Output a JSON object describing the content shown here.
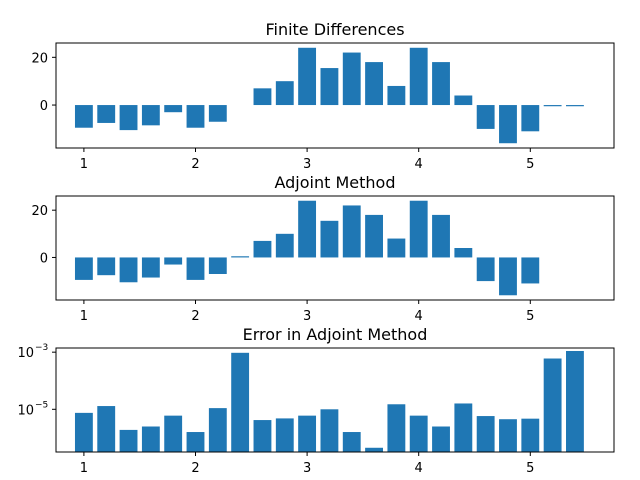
{
  "chart_data": [
    {
      "type": "bar",
      "title": "Finite Differences",
      "xlabel": "",
      "ylabel": "",
      "yscale": "linear",
      "xlim": [
        0.75,
        5.75
      ],
      "ylim": [
        -18,
        26
      ],
      "xticks": [
        1,
        2,
        3,
        4,
        5
      ],
      "xtick_labels": [
        "1",
        "2",
        "3",
        "4",
        "5"
      ],
      "yticks": [
        0,
        20
      ],
      "ytick_labels": [
        "0",
        "20"
      ],
      "bar_width": 0.16,
      "color": "#1f77b4",
      "x": [
        1.0,
        1.2,
        1.4,
        1.6,
        1.8,
        2.0,
        2.2,
        2.4,
        2.6,
        2.8,
        3.0,
        3.2,
        3.4,
        3.6,
        3.8,
        4.0,
        4.2,
        4.4,
        4.6,
        4.8,
        5.0,
        5.2,
        5.4
      ],
      "values": [
        -9.5,
        -7.5,
        -10.5,
        -8.5,
        -3.0,
        -9.5,
        -7.0,
        0,
        7.0,
        10.0,
        24.0,
        15.5,
        22.0,
        18.0,
        8.0,
        24.0,
        18.0,
        4.0,
        -10.0,
        -16.0,
        -11.0,
        -0.5,
        -0.5
      ]
    },
    {
      "type": "bar",
      "title": "Adjoint Method",
      "xlabel": "",
      "ylabel": "",
      "yscale": "linear",
      "xlim": [
        0.75,
        5.75
      ],
      "ylim": [
        -18,
        26
      ],
      "xticks": [
        1,
        2,
        3,
        4,
        5
      ],
      "xtick_labels": [
        "1",
        "2",
        "3",
        "4",
        "5"
      ],
      "yticks": [
        0,
        20
      ],
      "ytick_labels": [
        "0",
        "20"
      ],
      "bar_width": 0.16,
      "color": "#1f77b4",
      "x": [
        1.0,
        1.2,
        1.4,
        1.6,
        1.8,
        2.0,
        2.2,
        2.4,
        2.6,
        2.8,
        3.0,
        3.2,
        3.4,
        3.6,
        3.8,
        4.0,
        4.2,
        4.4,
        4.6,
        4.8,
        5.0
      ],
      "values": [
        -9.5,
        -7.5,
        -10.5,
        -8.5,
        -3.0,
        -9.5,
        -7.0,
        0.5,
        7.0,
        10.0,
        24.0,
        15.5,
        22.0,
        18.0,
        8.0,
        24.0,
        18.0,
        4.0,
        -10.0,
        -16.0,
        -11.0
      ]
    },
    {
      "type": "bar",
      "title": "Error in Adjoint Method",
      "xlabel": "",
      "ylabel": "",
      "yscale": "log",
      "xlim": [
        0.75,
        5.75
      ],
      "ylim": [
        3.2e-07,
        0.0014
      ],
      "xticks": [
        1,
        2,
        3,
        4,
        5
      ],
      "xtick_labels": [
        "1",
        "2",
        "3",
        "4",
        "5"
      ],
      "yticks": [
        1e-05,
        0.001
      ],
      "ytick_labels": [
        {
          "base": "10",
          "exp": "−5"
        },
        {
          "base": "10",
          "exp": "−3"
        }
      ],
      "bar_width": 0.16,
      "color": "#1f77b4",
      "x": [
        1.0,
        1.2,
        1.4,
        1.6,
        1.8,
        2.0,
        2.2,
        2.4,
        2.6,
        2.8,
        3.0,
        3.2,
        3.4,
        3.6,
        3.8,
        4.0,
        4.2,
        4.4,
        4.6,
        4.8,
        5.0,
        5.2,
        5.4
      ],
      "values": [
        7.5e-06,
        1.3e-05,
        1.9e-06,
        2.5e-06,
        6e-06,
        1.6e-06,
        1.1e-05,
        0.00095,
        4.2e-06,
        4.8e-06,
        6e-06,
        1e-05,
        1.6e-06,
        4.5e-07,
        1.5e-05,
        6e-06,
        2.5e-06,
        1.6e-05,
        5.8e-06,
        4.5e-06,
        4.7e-06,
        0.0006,
        0.0011
      ]
    }
  ]
}
